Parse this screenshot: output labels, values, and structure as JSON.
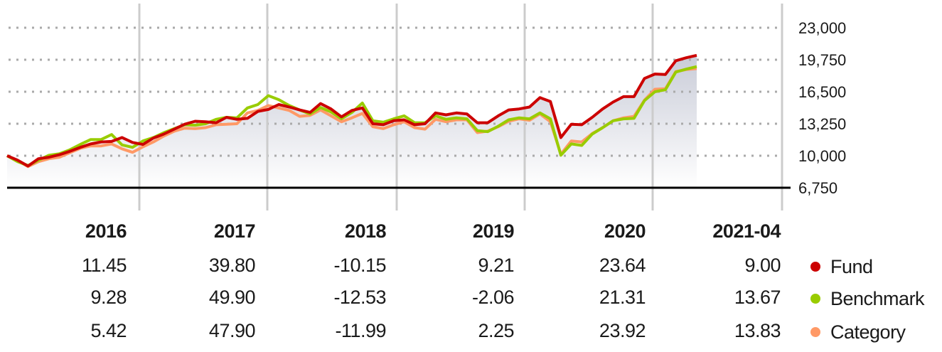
{
  "chart_data": {
    "type": "line",
    "y_ticks": [
      23000,
      19750,
      16500,
      13250,
      10000,
      6750
    ],
    "y_tick_labels": [
      "23,000",
      "19,750",
      "16,500",
      "13,250",
      "10,000",
      "6,750"
    ],
    "ylim": [
      6750,
      23000
    ],
    "grid": "dotted horizontal, solid vertical year separators",
    "legend_placement": "right of returns table",
    "area_fill_series": "Fund",
    "series": [
      {
        "name": "Fund",
        "color": "#cc0000",
        "values": [
          10000,
          9550,
          8950,
          9700,
          9850,
          10100,
          10450,
          10850,
          11200,
          11400,
          11450,
          11850,
          11350,
          11150,
          11800,
          12200,
          12700,
          13200,
          13500,
          13450,
          13350,
          13900,
          13700,
          13800,
          14500,
          14700,
          15200,
          14950,
          14650,
          14400,
          15300,
          14750,
          13950,
          14600,
          14850,
          13250,
          13150,
          13550,
          13650,
          13150,
          13250,
          14350,
          14150,
          14350,
          14250,
          13350,
          13350,
          14050,
          14650,
          14750,
          14950,
          15900,
          15500,
          11850,
          13200,
          13150,
          13900,
          14750,
          15450,
          16000,
          16000,
          17850,
          18300,
          18250,
          19650,
          19950,
          20200
        ]
      },
      {
        "name": "Benchmark",
        "color": "#99cc00",
        "values": [
          10000,
          9400,
          9000,
          9550,
          10050,
          10200,
          10600,
          11150,
          11650,
          11650,
          12150,
          11100,
          10850,
          11500,
          11850,
          12350,
          12750,
          13150,
          13100,
          13250,
          13700,
          13900,
          13850,
          14850,
          15200,
          16100,
          15700,
          15100,
          14650,
          14250,
          14900,
          14450,
          13750,
          14400,
          15350,
          13550,
          13400,
          13750,
          14050,
          13350,
          13350,
          14050,
          13700,
          13850,
          13750,
          12550,
          12450,
          13000,
          13650,
          13850,
          13750,
          14350,
          13750,
          10050,
          11200,
          11050,
          12200,
          12850,
          13550,
          13750,
          13800,
          15600,
          16500,
          16700,
          18500,
          18800,
          19050
        ]
      },
      {
        "name": "Category",
        "color": "#ff9966",
        "values": [
          10000,
          9500,
          8900,
          9400,
          9700,
          9850,
          10300,
          10750,
          11000,
          11000,
          11200,
          10700,
          10350,
          10900,
          11400,
          12000,
          12500,
          12800,
          12750,
          12850,
          13150,
          13200,
          13250,
          14350,
          14600,
          15100,
          14850,
          14600,
          14000,
          14100,
          14650,
          14050,
          13450,
          13850,
          14300,
          12950,
          12750,
          13150,
          13450,
          12850,
          12700,
          13700,
          13450,
          13650,
          13650,
          12350,
          12500,
          12950,
          13500,
          13750,
          13600,
          14250,
          13450,
          10150,
          11500,
          11400,
          12250,
          12850,
          13550,
          13850,
          14000,
          15650,
          16750,
          16800,
          18550,
          18750,
          18850
        ]
      }
    ],
    "table": {
      "headers": [
        "2016",
        "2017",
        "2018",
        "2019",
        "2020",
        "2021-04"
      ],
      "rows": [
        {
          "name": "Fund",
          "values": [
            "11.45",
            "39.80",
            "-10.15",
            "9.21",
            "23.64",
            "9.00"
          ]
        },
        {
          "name": "Benchmark",
          "values": [
            "9.28",
            "49.90",
            "-12.53",
            "-2.06",
            "21.31",
            "13.67"
          ]
        },
        {
          "name": "Category",
          "values": [
            "5.42",
            "47.90",
            "-11.99",
            "2.25",
            "23.92",
            "13.83"
          ]
        }
      ]
    }
  }
}
